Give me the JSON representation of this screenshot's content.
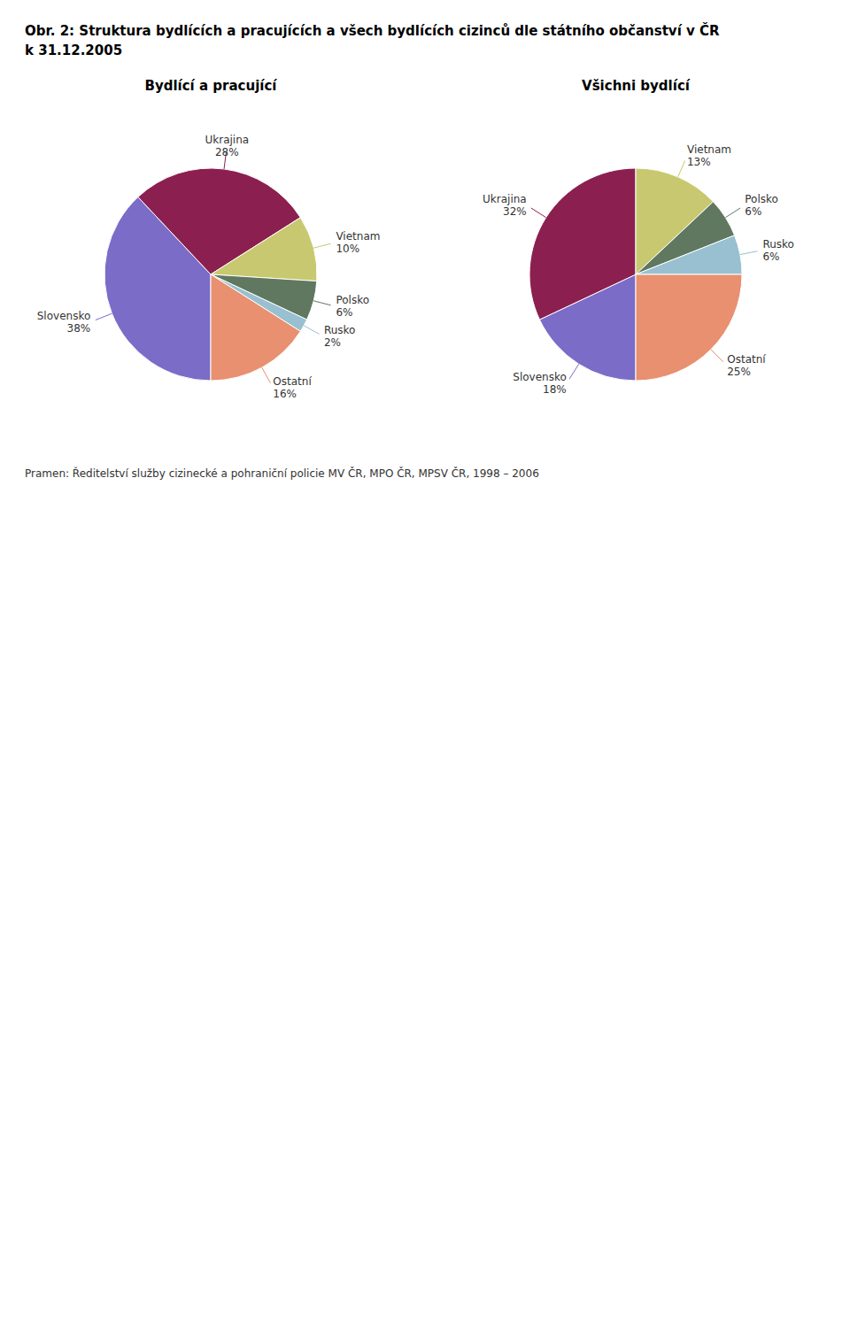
{
  "chart_data": [
    {
      "type": "pie",
      "title": [
        "Obr. 2: Struktura bydlících a pracujících a všech bydlících cizinců dle státního občanství v ČR",
        "k 31.12.2005"
      ],
      "subtitle": "Bydlící a pracující",
      "categories": [
        "Slovensko",
        "Ukrajina",
        "Vietnam",
        "Polsko",
        "Rusko",
        "Ostatní"
      ],
      "values": [
        38,
        28,
        10,
        6,
        2,
        16
      ],
      "value_labels": [
        "38%",
        "28%",
        "10%",
        "6%",
        "2%",
        "16%"
      ],
      "colors": [
        "#7B6CC8",
        "#8B2050",
        "#C8C870",
        "#607860",
        "#98C0D0",
        "#E89070"
      ],
      "data_labels": true
    },
    {
      "type": "pie",
      "subtitle": "Všichni bydlící",
      "categories": [
        "Slovensko",
        "Ukrajina",
        "Vietnam",
        "Polsko",
        "Rusko",
        "Ostatní"
      ],
      "values": [
        18,
        32,
        13,
        6,
        6,
        25
      ],
      "value_labels": [
        "18%",
        "32%",
        "13%",
        "6%",
        "6%",
        "25%"
      ],
      "colors": [
        "#7B6CC8",
        "#8B2050",
        "#C8C870",
        "#607860",
        "#98C0D0",
        "#E89070"
      ],
      "data_labels": true,
      "annotations": [
        "Pramen: Ředitelství služby cizinecké a pohraniční policie MV ČR, MPO ČR, MPSV ČR, 1998 – 2006"
      ]
    }
  ]
}
